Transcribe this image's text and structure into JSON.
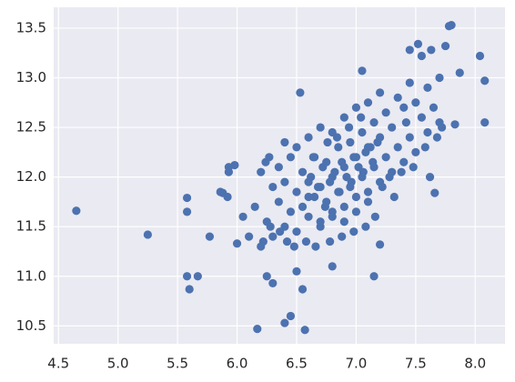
{
  "chart_data": {
    "type": "scatter",
    "color": "#4c72b0",
    "grid": true,
    "xlim": [
      4.46,
      8.25
    ],
    "ylim": [
      10.32,
      13.71
    ],
    "xticks": [
      {
        "value": 4.5,
        "label": "4.5"
      },
      {
        "value": 5.0,
        "label": "5.0"
      },
      {
        "value": 5.5,
        "label": "5.5"
      },
      {
        "value": 6.0,
        "label": "6.0"
      },
      {
        "value": 6.5,
        "label": "6.5"
      },
      {
        "value": 7.0,
        "label": "7.0"
      },
      {
        "value": 7.5,
        "label": "7.5"
      },
      {
        "value": 8.0,
        "label": "8.0"
      }
    ],
    "yticks": [
      {
        "value": 10.5,
        "label": "10.5"
      },
      {
        "value": 11.0,
        "label": "11.0"
      },
      {
        "value": 11.5,
        "label": "11.5"
      },
      {
        "value": 12.0,
        "label": "12.0"
      },
      {
        "value": 12.5,
        "label": "12.5"
      },
      {
        "value": 13.0,
        "label": "13.0"
      },
      {
        "value": 13.5,
        "label": "13.5"
      }
    ],
    "x": [
      4.65,
      5.25,
      5.58,
      5.58,
      5.58,
      5.6,
      5.67,
      5.77,
      5.86,
      5.88,
      5.92,
      5.93,
      5.93,
      5.98,
      6.0,
      6.05,
      6.17,
      6.4,
      6.45,
      6.57,
      6.2,
      6.24,
      6.27,
      7.8,
      7.78,
      8.04,
      8.08,
      8.08,
      7.87,
      7.05,
      7.15,
      6.53,
      6.4,
      6.25,
      6.3,
      6.55,
      6.5,
      6.8,
      7.2,
      7.63,
      7.45,
      7.52,
      7.55,
      7.66,
      7.83,
      7.75,
      6.1,
      6.15,
      6.2,
      6.25,
      6.3,
      6.3,
      6.35,
      6.35,
      6.4,
      6.4,
      6.45,
      6.45,
      6.5,
      6.5,
      6.5,
      6.55,
      6.55,
      6.6,
      6.6,
      6.6,
      6.65,
      6.65,
      6.7,
      6.7,
      6.7,
      6.75,
      6.75,
      6.8,
      6.8,
      6.8,
      6.85,
      6.85,
      6.9,
      6.9,
      6.9,
      6.95,
      6.95,
      7.0,
      7.0,
      7.0,
      7.05,
      7.05,
      7.1,
      7.1,
      7.1,
      7.15,
      7.15,
      7.2,
      7.2,
      7.2,
      7.25,
      7.25,
      7.3,
      7.3,
      7.35,
      7.35,
      7.4,
      7.4,
      7.45,
      7.45,
      7.5,
      7.5,
      7.55,
      7.6,
      7.6,
      7.65,
      7.7,
      7.7,
      6.6,
      6.62,
      6.68,
      6.72,
      6.78,
      6.82,
      6.88,
      6.92,
      6.98,
      7.02,
      7.08,
      7.12,
      7.18,
      6.74,
      6.86,
      6.96,
      7.06,
      6.64,
      6.76,
      6.84,
      6.94,
      7.04,
      7.14,
      6.7,
      6.8,
      6.9,
      7.0,
      7.1,
      7.22,
      7.28,
      7.32,
      7.38,
      7.42,
      6.58,
      6.48,
      6.42,
      6.36,
      6.28,
      6.22,
      7.48,
      7.58,
      7.62,
      7.68,
      7.72,
      6.66,
      6.78,
      6.88,
      6.98,
      7.08,
      7.16
    ],
    "values": [
      11.66,
      11.42,
      11.79,
      11.65,
      11.0,
      10.87,
      11.0,
      11.4,
      11.85,
      11.84,
      11.8,
      12.05,
      12.1,
      12.12,
      11.33,
      11.6,
      10.47,
      10.53,
      10.6,
      10.46,
      12.05,
      12.15,
      12.2,
      13.53,
      13.52,
      13.22,
      12.97,
      12.55,
      13.05,
      13.07,
      11.0,
      12.85,
      12.35,
      11.0,
      10.93,
      10.87,
      11.05,
      11.1,
      11.32,
      13.28,
      13.28,
      13.34,
      13.22,
      11.84,
      12.53,
      13.32,
      11.4,
      11.7,
      11.3,
      11.55,
      11.9,
      11.4,
      11.75,
      12.1,
      11.5,
      11.95,
      11.65,
      12.2,
      11.45,
      11.85,
      12.3,
      11.7,
      12.05,
      11.6,
      11.95,
      12.4,
      11.8,
      12.2,
      11.55,
      11.9,
      12.5,
      11.75,
      12.15,
      11.65,
      12.0,
      12.45,
      11.85,
      12.3,
      11.7,
      12.1,
      12.6,
      11.9,
      12.35,
      11.8,
      12.2,
      12.7,
      12.0,
      12.45,
      11.85,
      12.3,
      12.75,
      12.1,
      12.55,
      11.95,
      12.4,
      12.85,
      12.2,
      12.65,
      12.05,
      12.5,
      12.3,
      12.8,
      12.15,
      12.7,
      12.4,
      12.95,
      12.25,
      12.75,
      12.6,
      12.45,
      12.9,
      12.7,
      12.55,
      13.0,
      11.8,
      12.0,
      11.9,
      12.1,
      11.95,
      12.05,
      12.15,
      12.0,
      12.2,
      12.1,
      12.25,
      12.3,
      12.35,
      11.7,
      11.85,
      11.95,
      12.05,
      12.2,
      12.35,
      12.4,
      12.5,
      12.6,
      12.15,
      11.5,
      11.6,
      11.55,
      11.65,
      11.75,
      11.9,
      12.0,
      11.8,
      12.05,
      12.55,
      11.35,
      11.3,
      11.35,
      11.45,
      11.5,
      11.35,
      12.1,
      12.3,
      12.0,
      12.4,
      12.5,
      11.3,
      11.35,
      11.4,
      11.45,
      11.5,
      11.6
    ]
  }
}
